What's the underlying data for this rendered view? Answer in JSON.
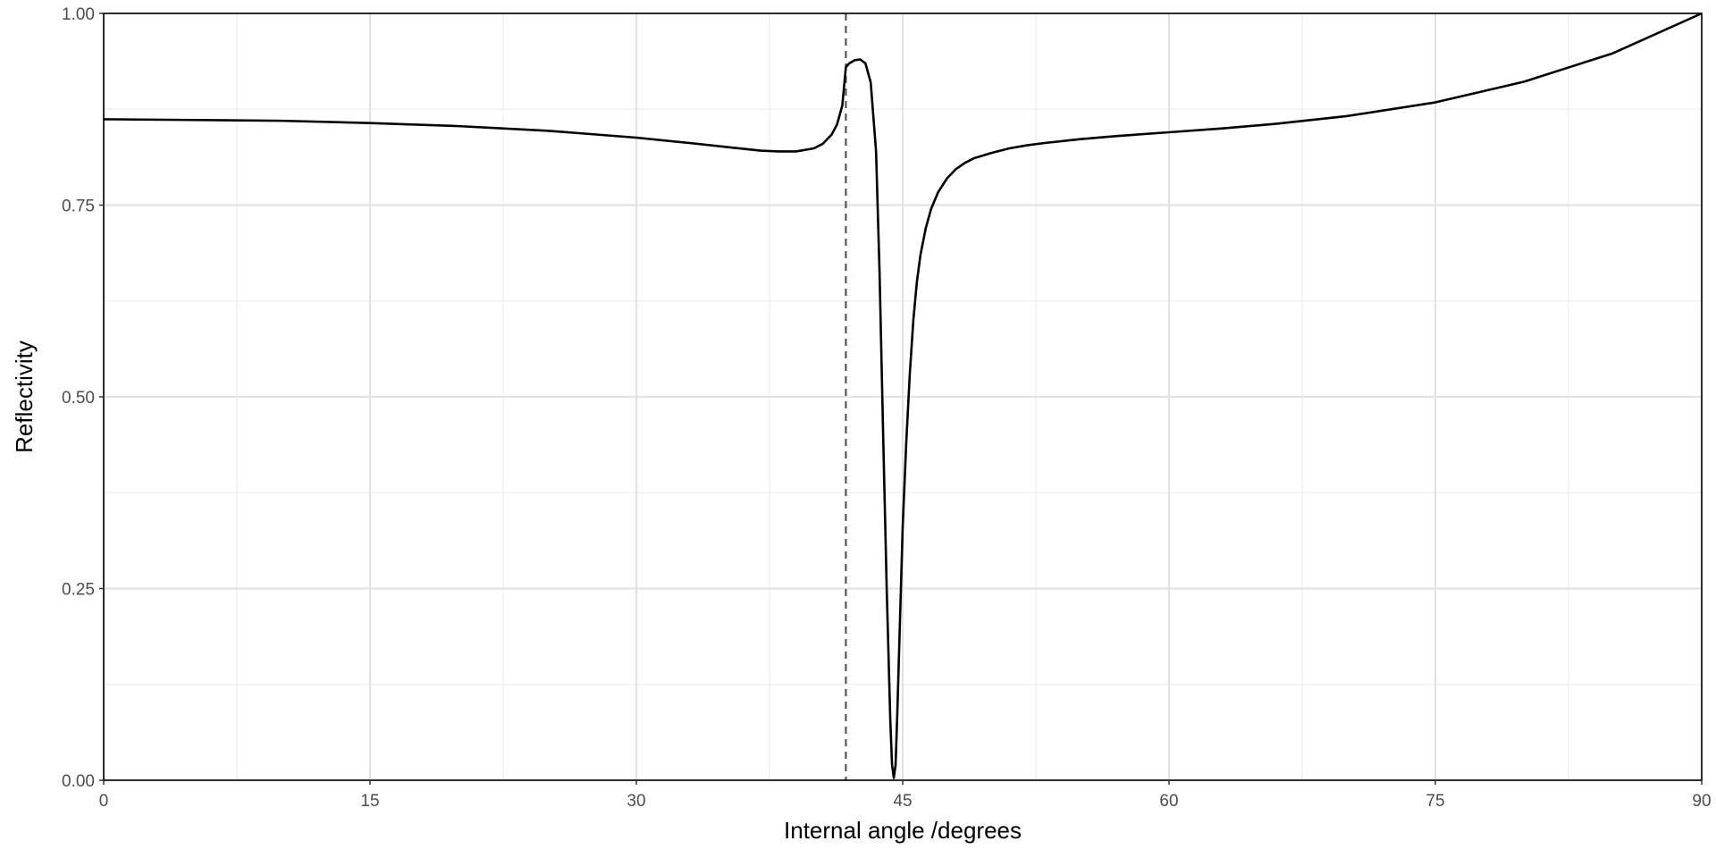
{
  "chart_data": {
    "type": "line",
    "xlabel": "Internal angle /degrees",
    "ylabel": "Reflectivity",
    "xlim": [
      0,
      90
    ],
    "ylim": [
      0,
      1
    ],
    "x_ticks": [
      0,
      15,
      30,
      45,
      60,
      75,
      90
    ],
    "x_tick_labels": [
      "0",
      "15",
      "30",
      "45",
      "60",
      "75",
      "90"
    ],
    "x_minor_ticks": [
      7.5,
      22.5,
      37.5,
      52.5,
      67.5,
      82.5
    ],
    "y_ticks": [
      0,
      0.25,
      0.5,
      0.75,
      1.0
    ],
    "y_tick_labels": [
      "0.00",
      "0.25",
      "0.50",
      "0.75",
      "1.00"
    ],
    "y_minor_ticks": [
      0.125,
      0.375,
      0.625,
      0.875
    ],
    "grid": true,
    "reference_line": {
      "orientation": "vertical",
      "x": 41.8,
      "style": "dashed"
    },
    "series": [
      {
        "x": [
          0,
          5,
          10,
          15,
          20,
          25,
          30,
          33,
          35,
          37,
          38,
          39,
          40,
          40.5,
          41,
          41.3,
          41.6,
          41.8,
          42.0,
          42.3,
          42.6,
          42.9,
          43.2,
          43.5,
          43.7,
          43.9,
          44.1,
          44.3,
          44.4,
          44.5,
          44.6,
          44.7,
          44.8,
          45.0,
          45.2,
          45.4,
          45.6,
          45.8,
          46.0,
          46.3,
          46.6,
          47,
          47.5,
          48,
          48.5,
          49,
          50,
          51,
          52,
          53,
          55,
          57,
          60,
          63,
          66,
          70,
          75,
          80,
          85,
          90
        ],
        "y": [
          0.862,
          0.861,
          0.86,
          0.857,
          0.853,
          0.847,
          0.838,
          0.831,
          0.826,
          0.821,
          0.82,
          0.82,
          0.824,
          0.83,
          0.842,
          0.855,
          0.88,
          0.93,
          0.935,
          0.939,
          0.94,
          0.935,
          0.91,
          0.82,
          0.66,
          0.45,
          0.25,
          0.08,
          0.02,
          0.003,
          0.02,
          0.09,
          0.17,
          0.33,
          0.44,
          0.53,
          0.6,
          0.65,
          0.685,
          0.72,
          0.745,
          0.767,
          0.785,
          0.797,
          0.805,
          0.811,
          0.818,
          0.824,
          0.828,
          0.831,
          0.836,
          0.84,
          0.845,
          0.85,
          0.856,
          0.866,
          0.884,
          0.911,
          0.948,
          1.0
        ]
      }
    ]
  }
}
